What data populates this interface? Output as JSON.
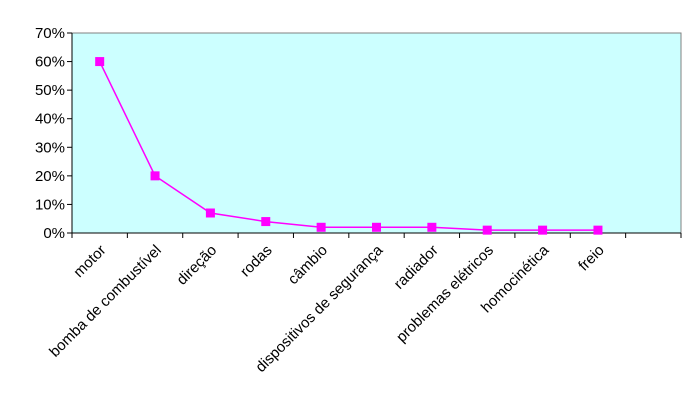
{
  "chart_data": {
    "type": "line",
    "categories": [
      "motor",
      "bomba de combustível",
      "direção",
      "rodas",
      "câmbio",
      "dispositivos de segurança",
      "radiador",
      "problemas elétricos",
      "homocinética",
      "freio"
    ],
    "series": [
      {
        "values": [
          60,
          20,
          7,
          4,
          2,
          2,
          2,
          1,
          1,
          1
        ]
      }
    ],
    "yticks": [
      "0%",
      "10%",
      "20%",
      "30%",
      "40%",
      "50%",
      "60%",
      "70%"
    ],
    "ylim": [
      0,
      70
    ],
    "slots": 11,
    "grid": false,
    "legend": "none",
    "colors": {
      "plot_background": "#ccffff",
      "series": "#ff00ff",
      "axis": "#000000"
    }
  }
}
